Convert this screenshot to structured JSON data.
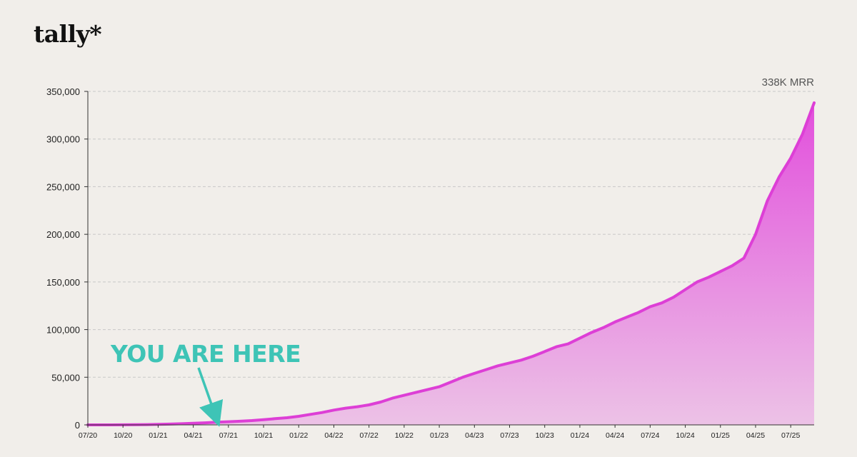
{
  "brand": {
    "logo_text": "tally*"
  },
  "colors": {
    "background": "#f1eeea",
    "line": "#dd3fd6",
    "area_top": "#e24fdc",
    "area_bottom": "#ecc2e6",
    "annotation": "#3ec4b6",
    "grid": "#c8c8c8"
  },
  "chart_data": {
    "type": "area",
    "title": "",
    "xlabel": "",
    "ylabel": "",
    "ylim": [
      0,
      350000
    ],
    "grid": true,
    "legend": "none",
    "y_ticks": [
      0,
      50000,
      100000,
      150000,
      200000,
      250000,
      300000,
      350000
    ],
    "y_tick_labels": [
      "0",
      "50,000",
      "100,000",
      "150,000",
      "200,000",
      "250,000",
      "300,000",
      "350,000"
    ],
    "x_tick_labels": [
      "07/20",
      "10/20",
      "01/21",
      "04/21",
      "07/21",
      "10/21",
      "01/22",
      "04/22",
      "07/22",
      "10/22",
      "01/23",
      "04/23",
      "07/23",
      "10/23",
      "01/24",
      "04/24",
      "07/24",
      "10/24",
      "01/25",
      "04/25",
      "07/25"
    ],
    "x": [
      "2020-07",
      "2020-08",
      "2020-09",
      "2020-10",
      "2020-11",
      "2020-12",
      "2021-01",
      "2021-02",
      "2021-03",
      "2021-04",
      "2021-05",
      "2021-06",
      "2021-07",
      "2021-08",
      "2021-09",
      "2021-10",
      "2021-11",
      "2021-12",
      "2022-01",
      "2022-02",
      "2022-03",
      "2022-04",
      "2022-05",
      "2022-06",
      "2022-07",
      "2022-08",
      "2022-09",
      "2022-10",
      "2022-11",
      "2022-12",
      "2023-01",
      "2023-02",
      "2023-03",
      "2023-04",
      "2023-05",
      "2023-06",
      "2023-07",
      "2023-08",
      "2023-09",
      "2023-10",
      "2023-11",
      "2023-12",
      "2024-01",
      "2024-02",
      "2024-03",
      "2024-04",
      "2024-05",
      "2024-06",
      "2024-07",
      "2024-08",
      "2024-09",
      "2024-10",
      "2024-11",
      "2024-12",
      "2025-01",
      "2025-02",
      "2025-03",
      "2025-04",
      "2025-05",
      "2025-06",
      "2025-07",
      "2025-08",
      "2025-09"
    ],
    "series": [
      {
        "values": [
          0,
          0,
          0,
          100,
          200,
          300,
          500,
          800,
          1200,
          1700,
          2200,
          2800,
          3300,
          3800,
          4500,
          5500,
          6500,
          7500,
          9000,
          11000,
          13000,
          15500,
          17500,
          19000,
          21000,
          24000,
          28000,
          31000,
          34000,
          37000,
          40000,
          45000,
          50000,
          54000,
          58000,
          62000,
          65000,
          68000,
          72000,
          77000,
          82000,
          85000,
          91000,
          97000,
          102000,
          108000,
          113000,
          118000,
          124000,
          128000,
          134000,
          142000,
          150000,
          155000,
          161000,
          167000,
          175000,
          200000,
          235000,
          260000,
          280000,
          305000,
          338000
        ]
      }
    ],
    "annotations": [
      {
        "text": "338K MRR",
        "position": "top-right"
      },
      {
        "text": "YOU ARE HERE",
        "points_to": "2021-06"
      }
    ]
  }
}
